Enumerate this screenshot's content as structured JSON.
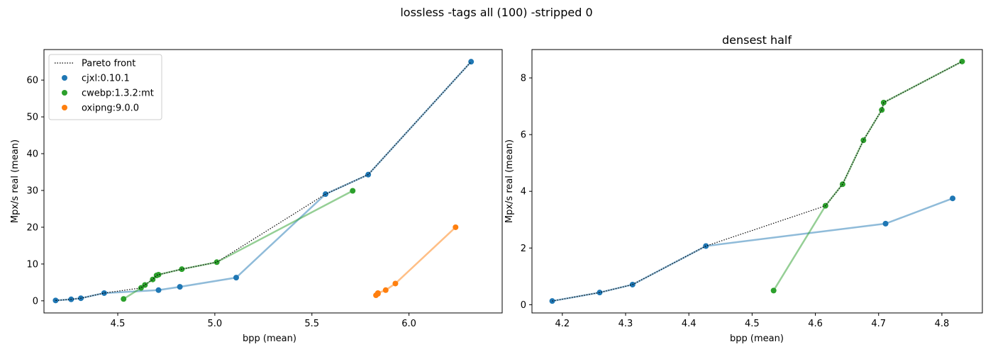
{
  "figure": {
    "suptitle": "lossless -tags all (100) -stripped 0"
  },
  "colors": {
    "cjxl": "#1f77b4",
    "cwebp": "#2ca02c",
    "oxipng": "#ff7f0e",
    "pareto": "#000000"
  },
  "chart_data": [
    {
      "type": "scatter",
      "title": "",
      "xlabel": "bpp (mean)",
      "ylabel": "Mpx/s real (mean)",
      "xlim": [
        4.12,
        6.48
      ],
      "ylim": [
        -3.3,
        68.3
      ],
      "xticks": [
        4.5,
        5.0,
        5.5,
        6.0
      ],
      "xtick_labels": [
        "4.5",
        "5.0",
        "5.5",
        "6.0"
      ],
      "yticks": [
        0,
        10,
        20,
        30,
        40,
        50,
        60
      ],
      "ytick_labels": [
        "0",
        "10",
        "20",
        "30",
        "40",
        "50",
        "60"
      ],
      "legend": {
        "placement": "top-left",
        "entries": [
          {
            "label": "Pareto front",
            "style": "dotted-line",
            "color": "#000000"
          },
          {
            "label": "cjxl:0.10.1",
            "style": "marker",
            "color": "#1f77b4"
          },
          {
            "label": "cwebp:1.3.2:mt",
            "style": "marker",
            "color": "#2ca02c"
          },
          {
            "label": "oxipng:9.0.0",
            "style": "marker",
            "color": "#ff7f0e"
          }
        ]
      },
      "series": [
        {
          "name": "cjxl:0.10.1",
          "color": "#1f77b4",
          "x": [
            4.18,
            4.26,
            4.31,
            4.43,
            4.71,
            4.82,
            5.11,
            5.57,
            5.79,
            6.32
          ],
          "y": [
            0.1,
            0.4,
            0.7,
            2.1,
            2.9,
            3.8,
            6.3,
            29.0,
            34.3,
            65.0
          ]
        },
        {
          "name": "cwebp:1.3.2:mt",
          "color": "#2ca02c",
          "x": [
            4.53,
            4.62,
            4.64,
            4.68,
            4.7,
            4.71,
            4.83,
            5.01,
            5.71
          ],
          "y": [
            0.5,
            3.5,
            4.3,
            5.8,
            6.9,
            7.1,
            8.6,
            10.5,
            29.9
          ]
        },
        {
          "name": "oxipng:9.0.0",
          "color": "#ff7f0e",
          "x": [
            5.83,
            5.84,
            5.84,
            5.88,
            5.93,
            6.24
          ],
          "y": [
            1.5,
            1.9,
            2.1,
            2.9,
            4.7,
            20.0
          ]
        }
      ],
      "pareto_front": {
        "name": "Pareto front",
        "x": [
          4.18,
          4.26,
          4.31,
          4.43,
          4.62,
          4.64,
          4.68,
          4.7,
          4.71,
          4.83,
          5.01,
          5.57,
          5.79,
          6.32
        ],
        "y": [
          0.1,
          0.4,
          0.7,
          2.1,
          3.5,
          4.3,
          5.8,
          6.9,
          7.1,
          8.6,
          10.5,
          29.0,
          34.3,
          65.0
        ]
      }
    },
    {
      "type": "scatter",
      "title": "densest half",
      "xlabel": "bpp (mean)",
      "ylabel": "Mpx/s real (mean)",
      "xlim": [
        4.152,
        4.864
      ],
      "ylim": [
        -0.29,
        9.0
      ],
      "xticks": [
        4.2,
        4.3,
        4.4,
        4.5,
        4.6,
        4.7,
        4.8
      ],
      "xtick_labels": [
        "4.2",
        "4.3",
        "4.4",
        "4.5",
        "4.6",
        "4.7",
        "4.8"
      ],
      "yticks": [
        0,
        2,
        4,
        6,
        8
      ],
      "ytick_labels": [
        "0",
        "2",
        "4",
        "6",
        "8"
      ],
      "series": [
        {
          "name": "cjxl:0.10.1",
          "color": "#1f77b4",
          "x": [
            4.184,
            4.259,
            4.311,
            4.427,
            4.711,
            4.817
          ],
          "y": [
            0.13,
            0.43,
            0.71,
            2.07,
            2.86,
            3.75
          ]
        },
        {
          "name": "cwebp:1.3.2:mt",
          "color": "#2ca02c",
          "x": [
            4.534,
            4.616,
            4.643,
            4.676,
            4.705,
            4.708,
            4.832
          ],
          "y": [
            0.5,
            3.49,
            4.25,
            5.8,
            6.87,
            7.13,
            8.58
          ]
        }
      ],
      "pareto_front": {
        "name": "Pareto front",
        "x": [
          4.184,
          4.259,
          4.311,
          4.427,
          4.616,
          4.643,
          4.676,
          4.705,
          4.708,
          4.832
        ],
        "y": [
          0.13,
          0.43,
          0.71,
          2.07,
          3.49,
          4.25,
          5.8,
          6.87,
          7.13,
          8.58
        ]
      }
    }
  ]
}
